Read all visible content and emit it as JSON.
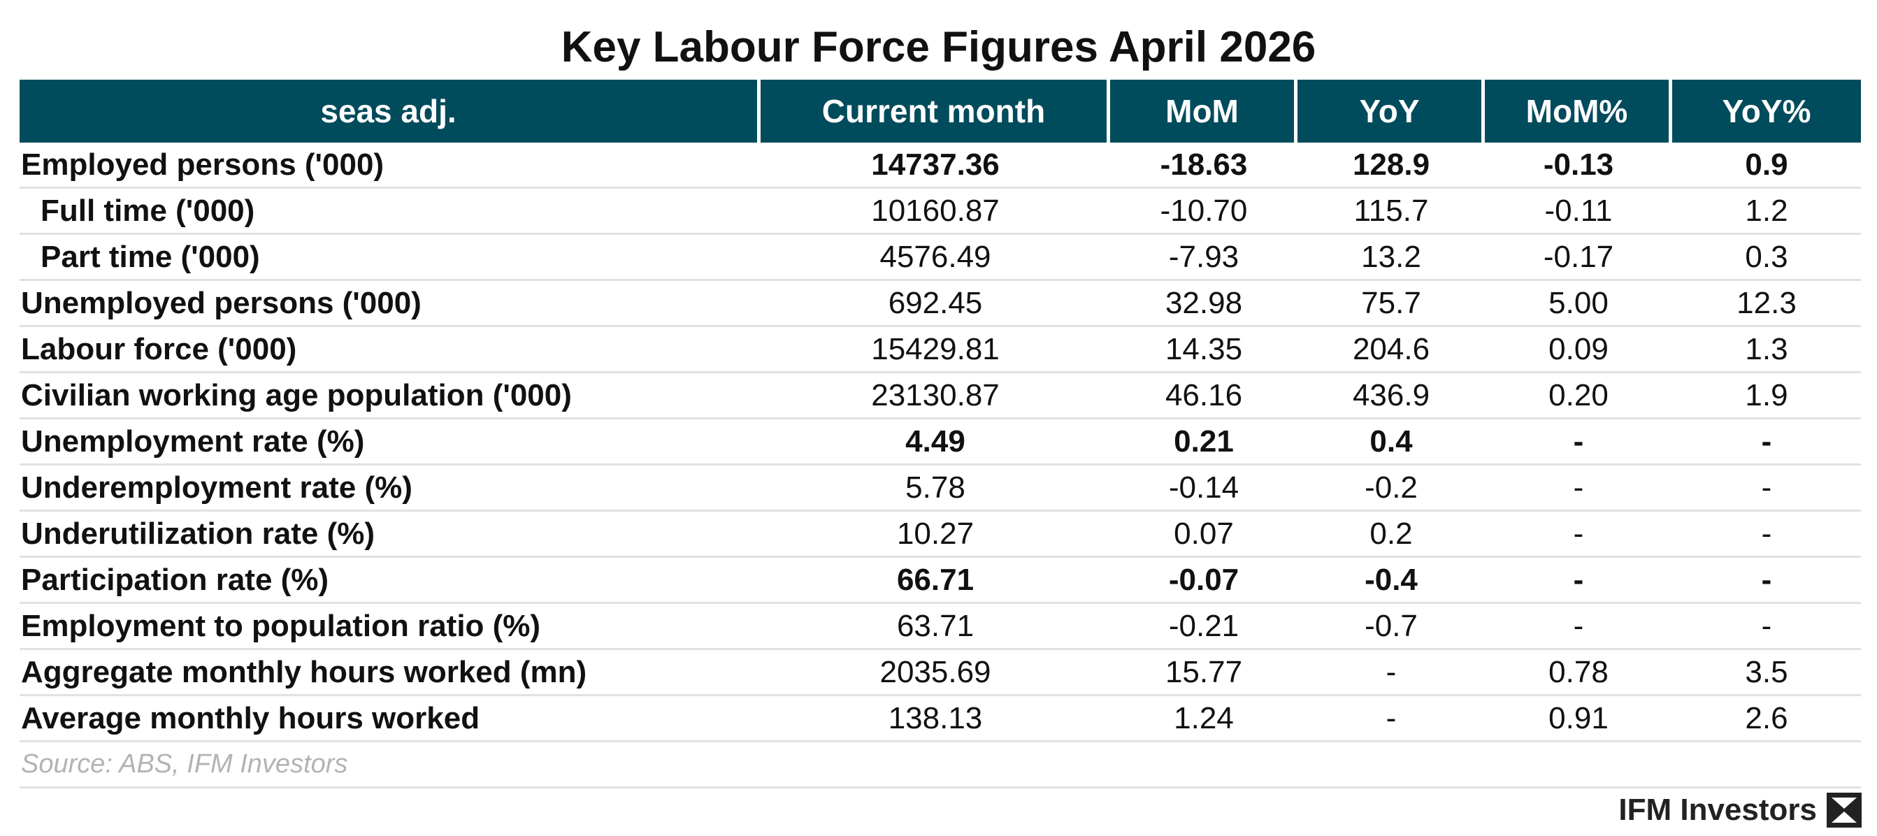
{
  "chart_data": {
    "type": "table",
    "title": "Key Labour Force Figures  April 2026",
    "columns": [
      "seas adj.",
      "Current month",
      "MoM",
      "YoY",
      "MoM%",
      "YoY%"
    ],
    "rows": [
      {
        "label": "Employed persons ('000)",
        "indent": false,
        "bold": true,
        "values": [
          "14737.36",
          "-18.63",
          "128.9",
          "-0.13",
          "0.9"
        ]
      },
      {
        "label": "Full time ('000)",
        "indent": true,
        "bold": false,
        "values": [
          "10160.87",
          "-10.70",
          "115.7",
          "-0.11",
          "1.2"
        ]
      },
      {
        "label": "Part time ('000)",
        "indent": true,
        "bold": false,
        "values": [
          "4576.49",
          "-7.93",
          "13.2",
          "-0.17",
          "0.3"
        ]
      },
      {
        "label": "Unemployed persons ('000)",
        "indent": false,
        "bold": false,
        "values": [
          "692.45",
          "32.98",
          "75.7",
          "5.00",
          "12.3"
        ]
      },
      {
        "label": "Labour force ('000)",
        "indent": false,
        "bold": false,
        "values": [
          "15429.81",
          "14.35",
          "204.6",
          "0.09",
          "1.3"
        ]
      },
      {
        "label": "Civilian working age population ('000)",
        "indent": false,
        "bold": false,
        "values": [
          "23130.87",
          "46.16",
          "436.9",
          "0.20",
          "1.9"
        ]
      },
      {
        "label": "Unemployment rate (%)",
        "indent": false,
        "bold": true,
        "values": [
          "4.49",
          "0.21",
          "0.4",
          "-",
          "-"
        ]
      },
      {
        "label": "Underemployment rate (%)",
        "indent": false,
        "bold": false,
        "values": [
          "5.78",
          "-0.14",
          "-0.2",
          "-",
          "-"
        ]
      },
      {
        "label": "Underutilization rate (%)",
        "indent": false,
        "bold": false,
        "values": [
          "10.27",
          "0.07",
          "0.2",
          "-",
          "-"
        ]
      },
      {
        "label": "Participation rate (%)",
        "indent": false,
        "bold": true,
        "values": [
          "66.71",
          "-0.07",
          "-0.4",
          "-",
          "-"
        ]
      },
      {
        "label": "Employment to population ratio (%)",
        "indent": false,
        "bold": false,
        "values": [
          "63.71",
          "-0.21",
          "-0.7",
          "-",
          "-"
        ]
      },
      {
        "label": "Aggregate monthly hours worked (mn)",
        "indent": false,
        "bold": false,
        "values": [
          "2035.69",
          "15.77",
          "-",
          "0.78",
          "3.5"
        ]
      },
      {
        "label": "Average monthly hours worked",
        "indent": false,
        "bold": false,
        "values": [
          "138.13",
          "1.24",
          "-",
          "0.91",
          "2.6"
        ]
      }
    ],
    "source": "Source: ABS, IFM Investors",
    "header_color": "#004B5C"
  },
  "brand": {
    "name": "IFM Investors",
    "logo_icon": "ifm-logo-icon"
  }
}
